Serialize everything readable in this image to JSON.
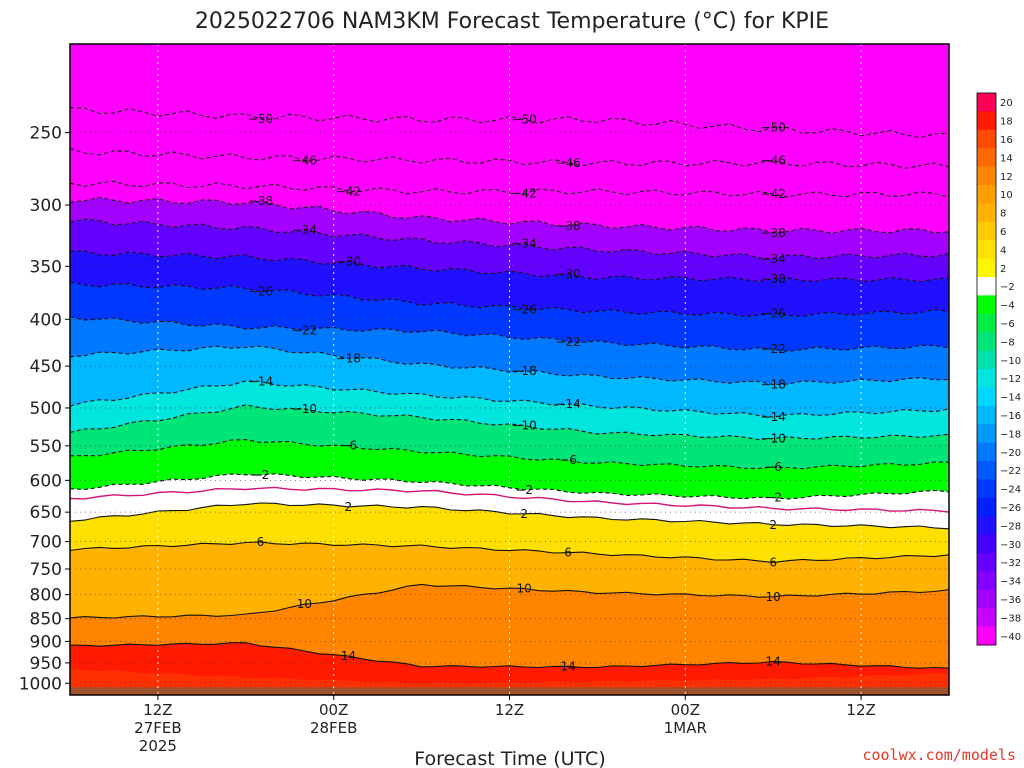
{
  "chart_data": {
    "type": "heatmap",
    "title": "2025022706 NAM3KM Forecast Temperature (°C) for KPIE",
    "xlabel": "Forecast Time (UTC)",
    "ylabel": "",
    "credit": "coolwx.com/models",
    "x_ticks": [
      {
        "hour": 6,
        "lines": [
          "12Z",
          "27FEB",
          "2025"
        ]
      },
      {
        "hour": 18,
        "lines": [
          "00Z",
          "28FEB"
        ]
      },
      {
        "hour": 30,
        "lines": [
          "12Z"
        ]
      },
      {
        "hour": 42,
        "lines": [
          "00Z",
          "1MAR"
        ]
      },
      {
        "hour": 54,
        "lines": [
          "12Z"
        ]
      }
    ],
    "x_range_hours": [
      0,
      60
    ],
    "y_axis": "pressure (hPa), log scale, inverted",
    "y_ticks": [
      250,
      300,
      350,
      400,
      450,
      500,
      550,
      600,
      650,
      700,
      750,
      800,
      850,
      900,
      950,
      1000
    ],
    "y_range": [
      200,
      1030
    ],
    "grid": true,
    "colorbar_levels": [
      20,
      18,
      16,
      14,
      12,
      10,
      8,
      6,
      4,
      2,
      -2,
      -4,
      -6,
      -8,
      -10,
      -12,
      -14,
      -16,
      -18,
      -20,
      -22,
      -24,
      -26,
      -28,
      -30,
      -32,
      -34,
      -36,
      -38,
      -40
    ],
    "colorbar_colors": [
      "#ff0058",
      "#ff1a00",
      "#ff4a00",
      "#ff6a00",
      "#ff8500",
      "#ff9e00",
      "#ffb300",
      "#ffca00",
      "#ffe000",
      "#fff500",
      "#ffffff",
      "#00ff00",
      "#00ee44",
      "#00e577",
      "#00e0aa",
      "#00e5dd",
      "#00d8ff",
      "#00b8ff",
      "#009aff",
      "#0078ff",
      "#0058ff",
      "#0038ff",
      "#0020ff",
      "#2010ff",
      "#4400ff",
      "#6400ff",
      "#8400ff",
      "#a400ff",
      "#c800ff",
      "#ff00ff"
    ],
    "contours": [
      {
        "value": -50,
        "x": [
          0,
          12,
          24,
          36,
          48,
          60
        ],
        "y": [
          236,
          240,
          242,
          242,
          248,
          252
        ]
      },
      {
        "value": -46,
        "x": [
          0,
          12,
          24,
          36,
          48,
          60
        ],
        "y": [
          262,
          266,
          268,
          270,
          270,
          272
        ]
      },
      {
        "value": -42,
        "x": [
          0,
          12,
          24,
          36,
          48,
          60
        ],
        "y": [
          284,
          286,
          290,
          290,
          292,
          292
        ]
      },
      {
        "value": -38,
        "x": [
          0,
          12,
          24,
          36,
          48,
          60
        ],
        "y": [
          296,
          298,
          310,
          316,
          320,
          320
        ]
      },
      {
        "value": -34,
        "x": [
          0,
          12,
          24,
          36,
          48,
          60
        ],
        "y": [
          312,
          318,
          328,
          336,
          342,
          340
        ]
      },
      {
        "value": -30,
        "x": [
          0,
          12,
          24,
          36,
          48,
          60
        ],
        "y": [
          338,
          342,
          352,
          360,
          362,
          362
        ]
      },
      {
        "value": -26,
        "x": [
          0,
          12,
          24,
          36,
          48,
          60
        ],
        "y": [
          366,
          370,
          384,
          392,
          396,
          392
        ]
      },
      {
        "value": -22,
        "x": [
          0,
          12,
          24,
          36,
          48,
          60
        ],
        "y": [
          398,
          408,
          412,
          424,
          432,
          428
        ]
      },
      {
        "value": -18,
        "x": [
          0,
          12,
          24,
          36,
          48,
          60
        ],
        "y": [
          438,
          428,
          448,
          462,
          470,
          464
        ]
      },
      {
        "value": -14,
        "x": [
          0,
          12,
          24,
          36,
          48,
          60
        ],
        "y": [
          496,
          468,
          484,
          498,
          510,
          502
        ]
      },
      {
        "value": -10,
        "x": [
          0,
          12,
          24,
          36,
          48,
          60
        ],
        "y": [
          532,
          498,
          512,
          532,
          540,
          536
        ]
      },
      {
        "value": -6,
        "x": [
          0,
          12,
          24,
          36,
          48,
          60
        ],
        "y": [
          566,
          542,
          558,
          574,
          582,
          574
        ]
      },
      {
        "value": -2,
        "x": [
          0,
          12,
          24,
          36,
          48,
          60
        ],
        "y": [
          614,
          590,
          602,
          620,
          628,
          616
        ]
      },
      {
        "value": 0,
        "x": [
          0,
          12,
          24,
          36,
          48,
          60
        ],
        "y": [
          628,
          612,
          616,
          634,
          644,
          648
        ]
      },
      {
        "value": 2,
        "x": [
          0,
          12,
          24,
          36,
          48,
          60
        ],
        "y": [
          664,
          636,
          642,
          660,
          670,
          676
        ]
      },
      {
        "value": 6,
        "x": [
          0,
          12,
          24,
          36,
          48,
          60
        ],
        "y": [
          714,
          702,
          708,
          722,
          736,
          724
        ]
      },
      {
        "value": 10,
        "x": [
          0,
          12,
          24,
          36,
          48,
          60
        ],
        "y": [
          848,
          842,
          780,
          796,
          804,
          792
        ]
      },
      {
        "value": 14,
        "x": [
          0,
          12,
          24,
          36,
          48,
          60
        ],
        "y": [
          910,
          904,
          958,
          960,
          948,
          964
        ]
      }
    ]
  }
}
